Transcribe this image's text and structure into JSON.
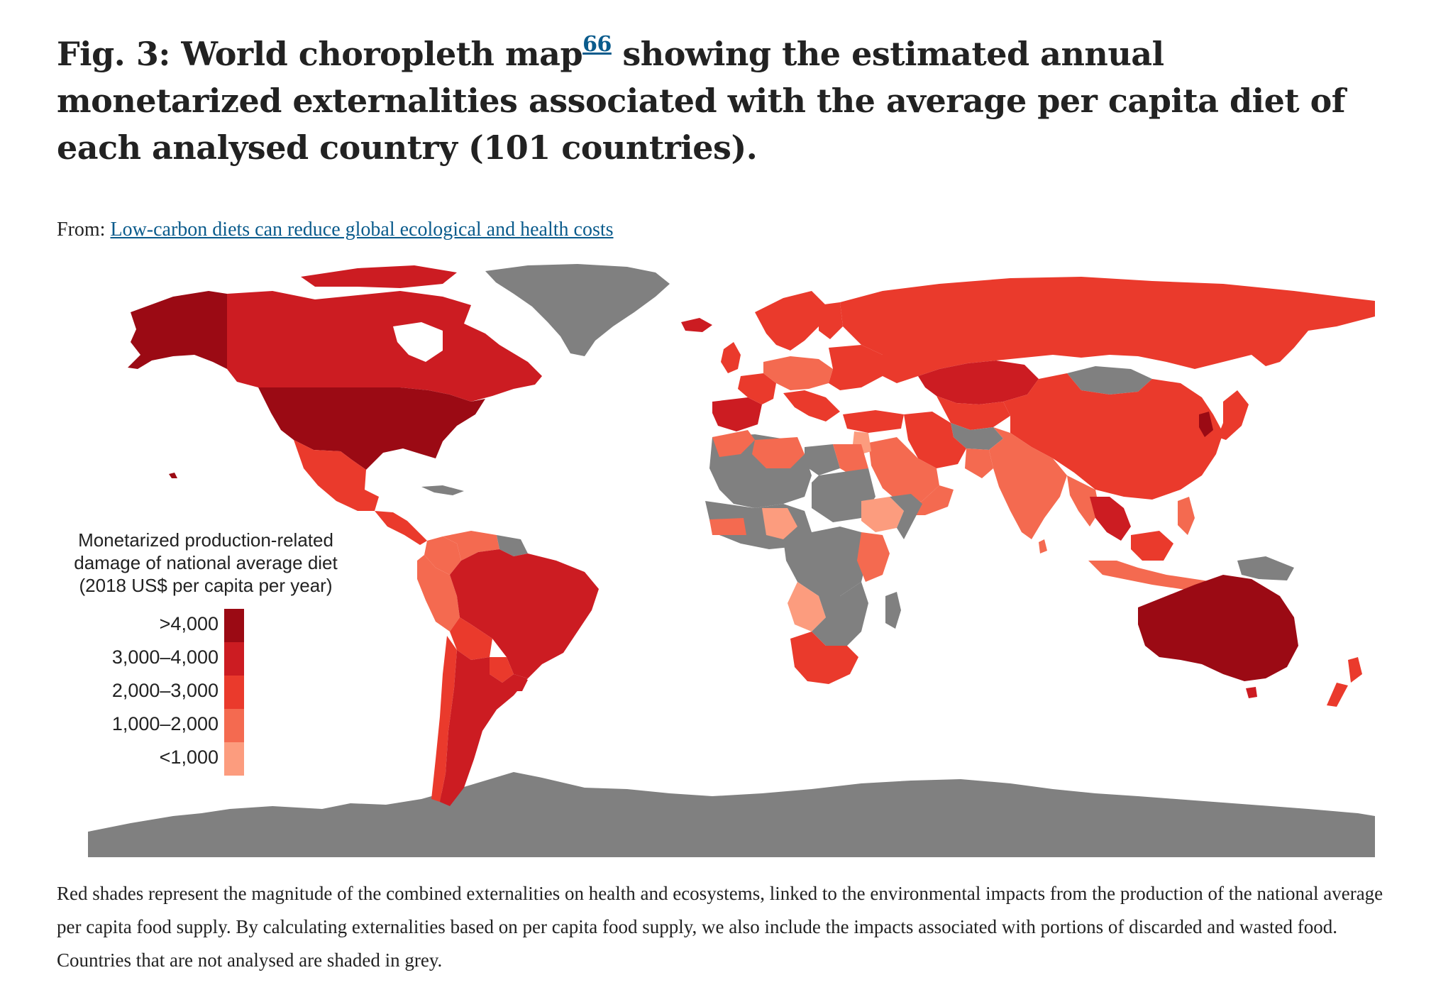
{
  "figure": {
    "title_prefix": "Fig. 3: World choropleth map",
    "title_ref": "66",
    "title_suffix": " showing the estimated annual monetarized externalities associated with the average per capita diet of each analysed country (101 countries).",
    "from_label": "From:",
    "from_link": "Low-carbon diets can reduce global ecological and health costs",
    "caption": "Red shades represent the magnitude of the combined externalities on health and ecosystems, linked to the environmental impacts from the production of the national average per capita food supply. By calculating externalities based on per capita food supply, we also include the impacts associated with portions of discarded and wasted food. Countries that are not analysed are shaded in grey."
  },
  "legend": {
    "title": "Monetarized production-related damage of national average diet (2018 US$ per capita per year)",
    "items": [
      {
        "label": ">4,000",
        "color": "#9b0a14"
      },
      {
        "label": "3,000–4,000",
        "color": "#cc1c22"
      },
      {
        "label": "2,000–3,000",
        "color": "#ea3a2c"
      },
      {
        "label": "1,000–2,000",
        "color": "#f46a50"
      },
      {
        "label": "<1,000",
        "color": "#fc9c7e"
      }
    ]
  },
  "colors": {
    "not_analysed": "#808080",
    "background": "#ffffff"
  }
}
